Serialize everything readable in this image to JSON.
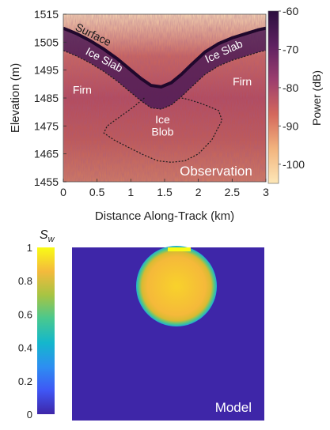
{
  "chart_data": [
    {
      "type": "heatmap",
      "panel": "observation",
      "xlabel": "Distance Along-Track (km)",
      "ylabel": "Elevation (m)",
      "xlim": [
        0,
        3
      ],
      "ylim": [
        1455,
        1515
      ],
      "xticks": [
        0,
        0.5,
        1,
        1.5,
        2,
        2.5,
        3
      ],
      "yticks": [
        1455,
        1465,
        1475,
        1485,
        1495,
        1505,
        1515
      ],
      "colorbar": {
        "label": "Power (dB)",
        "range": [
          -105,
          -60
        ],
        "ticks": [
          -100,
          -90,
          -80,
          -70,
          -60
        ],
        "colormap": [
          "#fde7b7",
          "#f2b47e",
          "#d4685c",
          "#9c3e6e",
          "#5e2161",
          "#2b0f3e"
        ]
      },
      "surface_line": {
        "x": [
          0,
          0.2,
          0.4,
          0.6,
          0.8,
          1.0,
          1.15,
          1.3,
          1.45,
          1.6,
          1.75,
          1.9,
          2.1,
          2.3,
          2.5,
          2.7,
          2.9,
          3.0
        ],
        "y": [
          1510,
          1508,
          1505.5,
          1502.5,
          1499,
          1495,
          1492,
          1489.5,
          1489,
          1490.5,
          1493.5,
          1497,
          1501.5,
          1504.5,
          1506.5,
          1508,
          1509.5,
          1510
        ]
      },
      "ice_slab_base": {
        "x": [
          0,
          0.2,
          0.4,
          0.6,
          0.8,
          1.0,
          1.15,
          1.3,
          1.45,
          1.6,
          1.75,
          1.9,
          2.1,
          2.3,
          2.5,
          2.7,
          2.9,
          3.0
        ],
        "y": [
          1502,
          1500,
          1497.5,
          1494.5,
          1491,
          1487,
          1484,
          1481.5,
          1481,
          1482.5,
          1485.5,
          1489,
          1493.5,
          1496.5,
          1498.5,
          1500,
          1501.5,
          1502
        ]
      },
      "ice_blob_outline": {
        "x": [
          1.2,
          1.05,
          0.85,
          0.65,
          0.6,
          0.75,
          0.95,
          1.2,
          1.4,
          1.6,
          1.8,
          2.0,
          2.2,
          2.35,
          2.3,
          2.05,
          1.85,
          1.75
        ],
        "y": [
          1485,
          1482,
          1478.5,
          1475,
          1472.5,
          1470,
          1467.5,
          1464.5,
          1462.5,
          1462,
          1462.5,
          1465,
          1470,
          1477,
          1480.5,
          1483,
          1484.5,
          1485
        ]
      },
      "annotations": [
        {
          "text": "Surface",
          "x": 0.42,
          "y": 1506.5,
          "rotate": 26,
          "color": "#1a1a1a"
        },
        {
          "text": "Ice Slab",
          "x": 0.58,
          "y": 1497.5,
          "rotate": 28,
          "color": "#ffffff"
        },
        {
          "text": "Ice Slab",
          "x": 2.4,
          "y": 1500.5,
          "rotate": -25,
          "color": "#ffffff"
        },
        {
          "text": "Firn",
          "x": 0.28,
          "y": 1486.5,
          "rotate": 0,
          "color": "#ffffff"
        },
        {
          "text": "Firn",
          "x": 2.65,
          "y": 1489.5,
          "rotate": 0,
          "color": "#ffffff"
        },
        {
          "text": "Ice",
          "x": 1.47,
          "y": 1476,
          "rotate": 0,
          "color": "#ffffff"
        },
        {
          "text": "Blob",
          "x": 1.47,
          "y": 1471.5,
          "rotate": 0,
          "color": "#ffffff"
        }
      ],
      "panel_label": "Observation"
    },
    {
      "type": "heatmap",
      "panel": "model",
      "colorbar": {
        "label": "S_w",
        "range": [
          0,
          1
        ],
        "ticks": [
          0,
          0.2,
          0.4,
          0.6,
          0.8,
          1
        ],
        "tick_labels": [
          "0",
          "0.2",
          "0.4",
          "0.6",
          "0.8",
          "1"
        ],
        "colormap": [
          "#3e26a8",
          "#3f57f5",
          "#2d8ff1",
          "#14b7cc",
          "#48c890",
          "#a7c443",
          "#f4ba3c",
          "#f9fb15"
        ]
      },
      "background_value": 0,
      "blob": {
        "shape": "circle",
        "value": 0.9,
        "rim_value": 0.5
      },
      "panel_label": "Model"
    }
  ]
}
